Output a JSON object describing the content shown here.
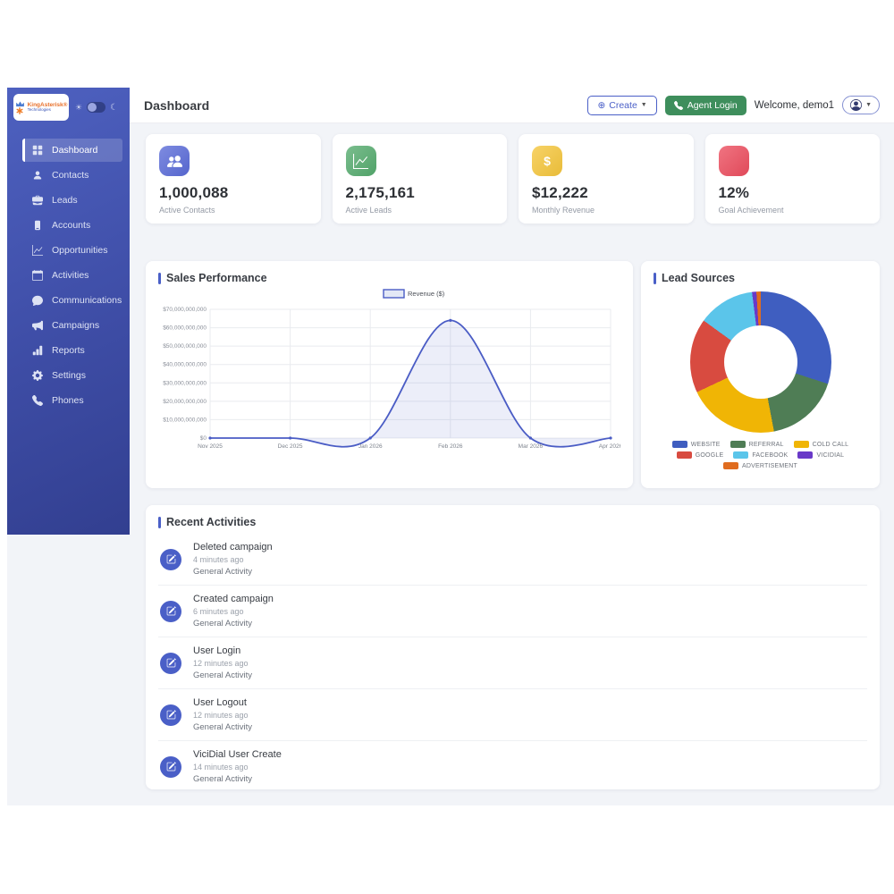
{
  "brand": {
    "name": "KingAsterisk®",
    "tagline": "Technologies"
  },
  "colors": {
    "accent": "#4a5fc7",
    "sidebar_top": "#4e61c0",
    "sidebar_bottom": "#323f90",
    "agent_button": "#3e8e5c",
    "content_bg": "#f2f4f8"
  },
  "sidebar": {
    "items": [
      {
        "label": "Dashboard",
        "icon": "dashboard-icon",
        "active": true
      },
      {
        "label": "Contacts",
        "icon": "person-icon",
        "active": false
      },
      {
        "label": "Leads",
        "icon": "briefcase-icon",
        "active": false
      },
      {
        "label": "Accounts",
        "icon": "book-icon",
        "active": false
      },
      {
        "label": "Opportunities",
        "icon": "graph-icon",
        "active": false
      },
      {
        "label": "Activities",
        "icon": "calendar-icon",
        "active": false
      },
      {
        "label": "Communications",
        "icon": "chat-icon",
        "active": false
      },
      {
        "label": "Campaigns",
        "icon": "megaphone-icon",
        "active": false
      },
      {
        "label": "Reports",
        "icon": "bar-chart-icon",
        "active": false
      },
      {
        "label": "Settings",
        "icon": "gear-icon",
        "active": false
      },
      {
        "label": "Phones",
        "icon": "phone-icon",
        "active": false
      }
    ]
  },
  "header": {
    "title": "Dashboard",
    "create_label": "Create",
    "agent_login_label": "Agent Login",
    "welcome": "Welcome, demo1"
  },
  "stats": [
    {
      "value": "1,000,088",
      "label": "Active Contacts",
      "icon": "users-icon",
      "color": "#5a6bd8"
    },
    {
      "value": "2,175,161",
      "label": "Active Leads",
      "icon": "trend-icon",
      "color": "#55ab6e"
    },
    {
      "value": "$12,222",
      "label": "Monthly Revenue",
      "icon": "dollar-icon",
      "color": "#f5c63c"
    },
    {
      "value": "12%",
      "label": "Goal Achievement",
      "icon": "target-icon",
      "color": "#ec4d5e"
    }
  ],
  "chart_data": [
    {
      "type": "line",
      "title": "Sales Performance",
      "legend": "Revenue ($)",
      "categories": [
        "Nov 2025",
        "Dec 2025",
        "Jan 2026",
        "Feb 2026",
        "Mar 2026",
        "Apr 2026"
      ],
      "values": [
        0,
        0,
        0,
        64000000000,
        0,
        0
      ],
      "ylim": [
        0,
        70000000000
      ],
      "ytick_step": 10000000000,
      "grid": true,
      "line_color": "#4a5cc5",
      "fill_color": "rgba(99,117,205,0.12)",
      "legend_position": "top"
    },
    {
      "type": "pie",
      "title": "Lead Sources",
      "legend_position": "bottom",
      "segments": [
        {
          "label": "WEBSITE",
          "value": 30,
          "color": "#3f5ec0"
        },
        {
          "label": "REFERRAL",
          "value": 17,
          "color": "#4f7d55"
        },
        {
          "label": "COLD CALL",
          "value": 21,
          "color": "#f0b505"
        },
        {
          "label": "GOOGLE",
          "value": 17,
          "color": "#d84b40"
        },
        {
          "label": "FACEBOOK",
          "value": 13,
          "color": "#5bc5ea"
        },
        {
          "label": "VICIDIAL",
          "value": 1,
          "color": "#6939c8"
        },
        {
          "label": "ADVERTISEMENT",
          "value": 1,
          "color": "#e06c1f"
        }
      ]
    }
  ],
  "activities": {
    "title": "Recent Activities",
    "items": [
      {
        "title": "Deleted campaign",
        "time": "4 minutes ago",
        "category": "General Activity"
      },
      {
        "title": "Created campaign",
        "time": "6 minutes ago",
        "category": "General Activity"
      },
      {
        "title": "User Login",
        "time": "12 minutes ago",
        "category": "General Activity"
      },
      {
        "title": "User Logout",
        "time": "12 minutes ago",
        "category": "General Activity"
      },
      {
        "title": "ViciDial User Create",
        "time": "14 minutes ago",
        "category": "General Activity"
      }
    ]
  }
}
